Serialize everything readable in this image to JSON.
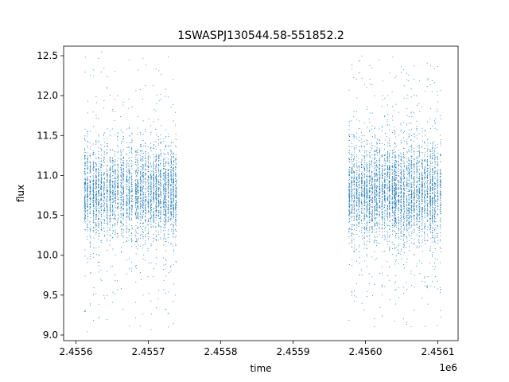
{
  "chart_data": {
    "type": "scatter",
    "title": "1SWASPJ130544.58-551852.2",
    "xlabel": "time",
    "ylabel": "flux",
    "x_offset_label": "1e6",
    "xlim": [
      2455583,
      2456128
    ],
    "ylim": [
      8.93,
      12.62
    ],
    "x_ticks": [
      2455600,
      2455700,
      2455800,
      2455900,
      2456000,
      2456100
    ],
    "x_tick_labels": [
      "2.4556",
      "2.4557",
      "2.4558",
      "2.4559",
      "2.4560",
      "2.4561"
    ],
    "y_ticks": [
      9.0,
      9.5,
      10.0,
      10.5,
      11.0,
      11.5,
      12.0,
      12.5
    ],
    "y_tick_labels": [
      "9.0",
      "9.5",
      "10.0",
      "10.5",
      "11.0",
      "11.5",
      "12.0",
      "12.5"
    ],
    "grid": false,
    "marker_color": "#1f77b4",
    "series": [
      {
        "segments": [
          {
            "x_range": [
              2455612,
              2455677
            ],
            "nights": 18,
            "center": 10.8,
            "spread": 0.27
          },
          {
            "x_range": [
              2455682,
              2455738
            ],
            "nights": 17,
            "center": 10.8,
            "spread": 0.27
          },
          {
            "x_range": [
              2455977,
              2456040
            ],
            "nights": 19,
            "center": 10.8,
            "spread": 0.28
          },
          {
            "x_range": [
              2456042,
              2456103
            ],
            "nights": 18,
            "center": 10.78,
            "spread": 0.3
          }
        ],
        "outlier_range": [
          9.1,
          12.5
        ]
      }
    ]
  }
}
